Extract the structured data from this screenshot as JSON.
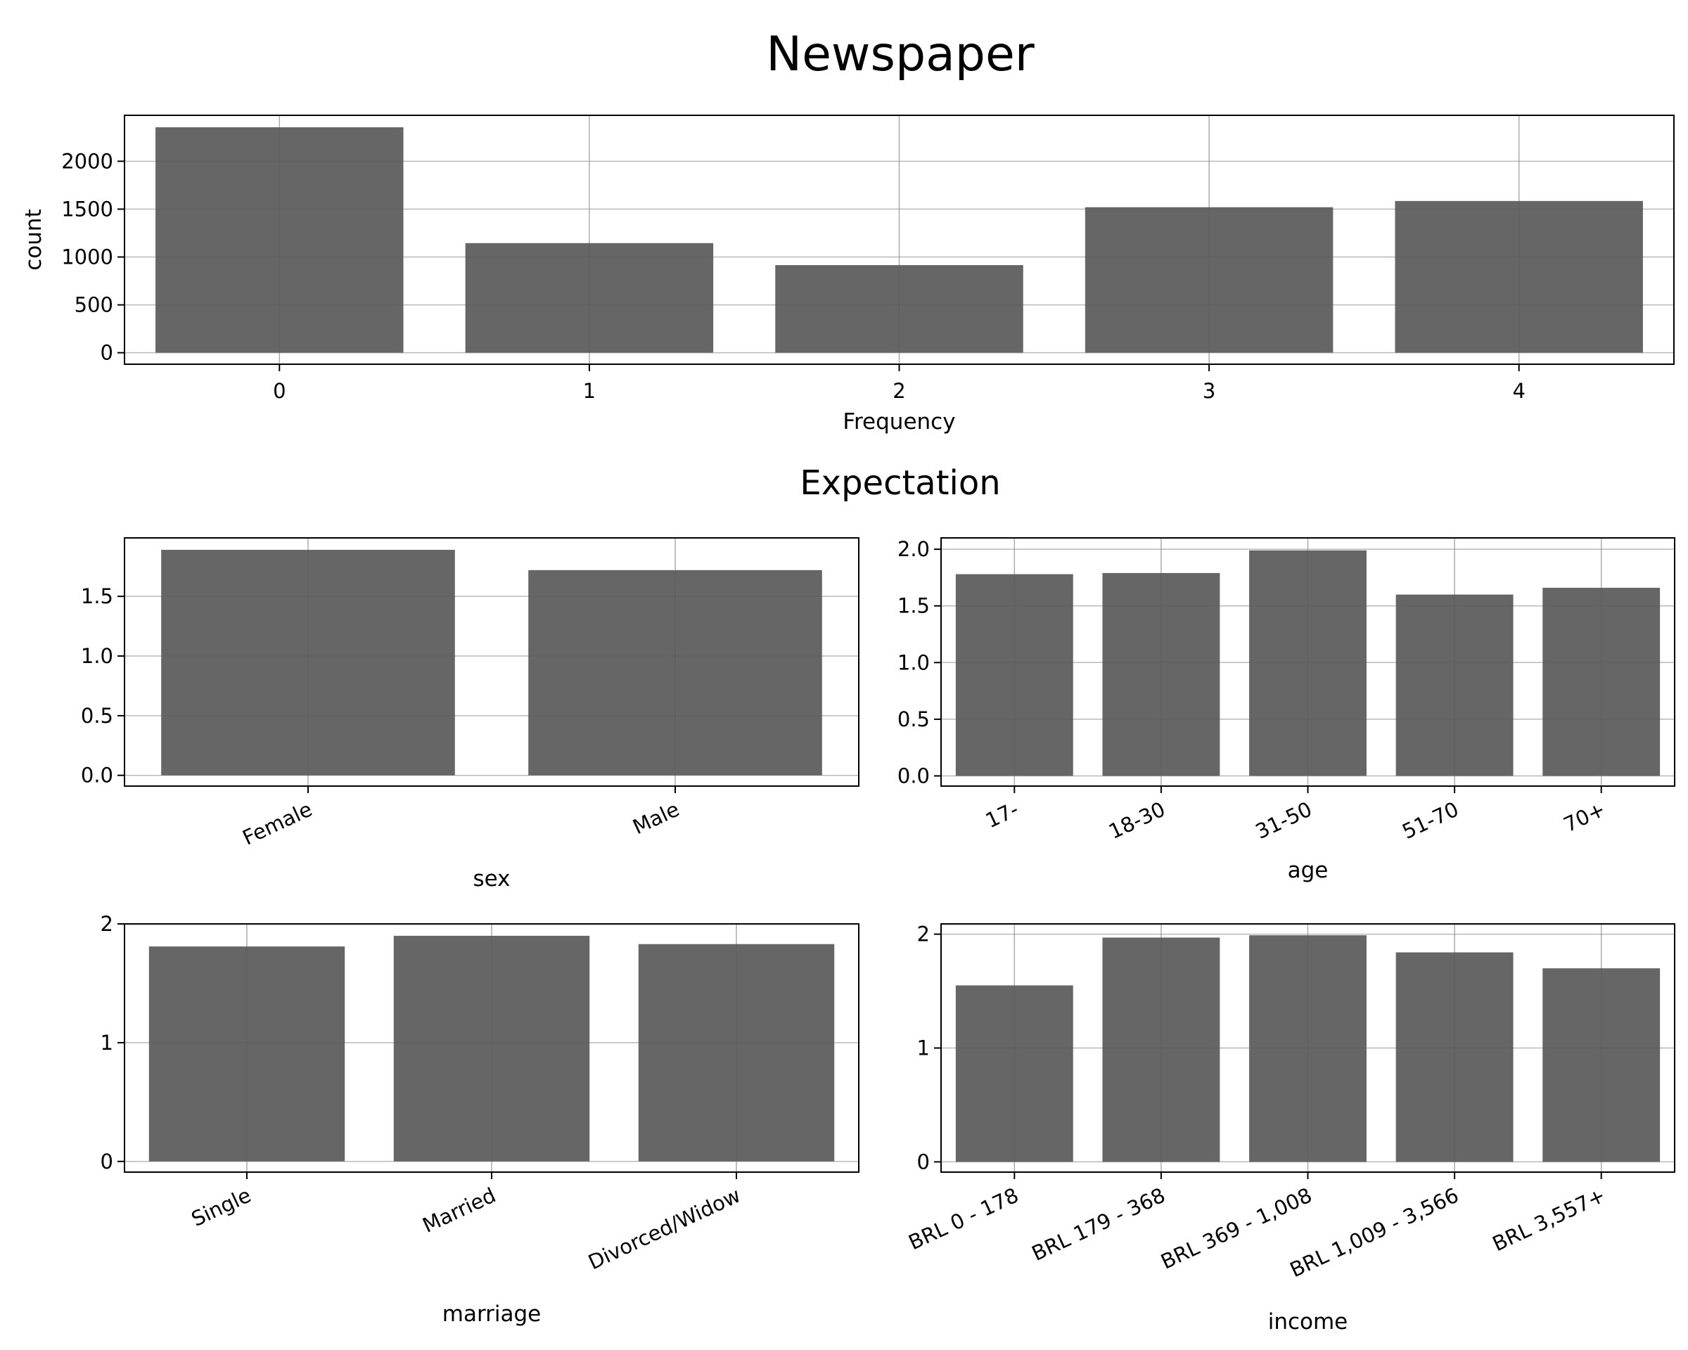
{
  "figure": {
    "title": "Newspaper",
    "subtitle": "Expectation"
  },
  "style": {
    "bar_color": "#666666",
    "grid_color": "#dddddd",
    "frame_color": "#000000",
    "background": "#ffffff"
  },
  "chart_data": [
    {
      "type": "bar",
      "categories": [
        "0",
        "1",
        "2",
        "3",
        "4"
      ],
      "values": [
        2355,
        1145,
        915,
        1520,
        1585
      ],
      "xlabel": "Frequency",
      "ylabel": "count",
      "ylim": [
        -120,
        2480
      ],
      "yticks": [
        0,
        500,
        1000,
        1500,
        2000
      ],
      "ytick_labels": [
        "0",
        "500",
        "1000",
        "1500",
        "2000"
      ],
      "grid": true,
      "xtick_rotation": 0
    },
    {
      "type": "bar",
      "categories": [
        "Female",
        "Male"
      ],
      "values": [
        1.89,
        1.72
      ],
      "xlabel": "sex",
      "ylabel": "",
      "ylim": [
        -0.09,
        1.99
      ],
      "yticks": [
        0.0,
        0.5,
        1.0,
        1.5
      ],
      "ytick_labels": [
        "0.0",
        "0.5",
        "1.0",
        "1.5"
      ],
      "grid": true,
      "xtick_rotation": -25
    },
    {
      "type": "bar",
      "categories": [
        "17-",
        "18-30",
        "31-50",
        "51-70",
        "70+"
      ],
      "values": [
        1.78,
        1.79,
        1.99,
        1.6,
        1.66
      ],
      "xlabel": "age",
      "ylabel": "",
      "ylim": [
        -0.09,
        2.1
      ],
      "yticks": [
        0.0,
        0.5,
        1.0,
        1.5,
        2.0
      ],
      "ytick_labels": [
        "0.0",
        "0.5",
        "1.0",
        "1.5",
        "2.0"
      ],
      "grid": true,
      "xtick_rotation": -25
    },
    {
      "type": "bar",
      "categories": [
        "Single",
        "Married",
        "Divorced/Widow"
      ],
      "values": [
        1.81,
        1.9,
        1.83
      ],
      "xlabel": "marriage",
      "ylabel": "",
      "ylim": [
        -0.09,
        2.0
      ],
      "yticks": [
        0,
        1,
        2
      ],
      "ytick_labels": [
        "0",
        "1",
        "2"
      ],
      "grid": true,
      "xtick_rotation": -25
    },
    {
      "type": "bar",
      "categories": [
        "BRL 0 - 178",
        "BRL 179 - 368",
        "BRL 369 - 1,008",
        "BRL 1,009 - 3,566",
        "BRL 3,557+"
      ],
      "values": [
        1.55,
        1.97,
        1.99,
        1.84,
        1.7
      ],
      "xlabel": "income",
      "ylabel": "",
      "ylim": [
        -0.09,
        2.09
      ],
      "yticks": [
        0,
        1,
        2
      ],
      "ytick_labels": [
        "0",
        "1",
        "2"
      ],
      "grid": true,
      "xtick_rotation": -25
    }
  ]
}
